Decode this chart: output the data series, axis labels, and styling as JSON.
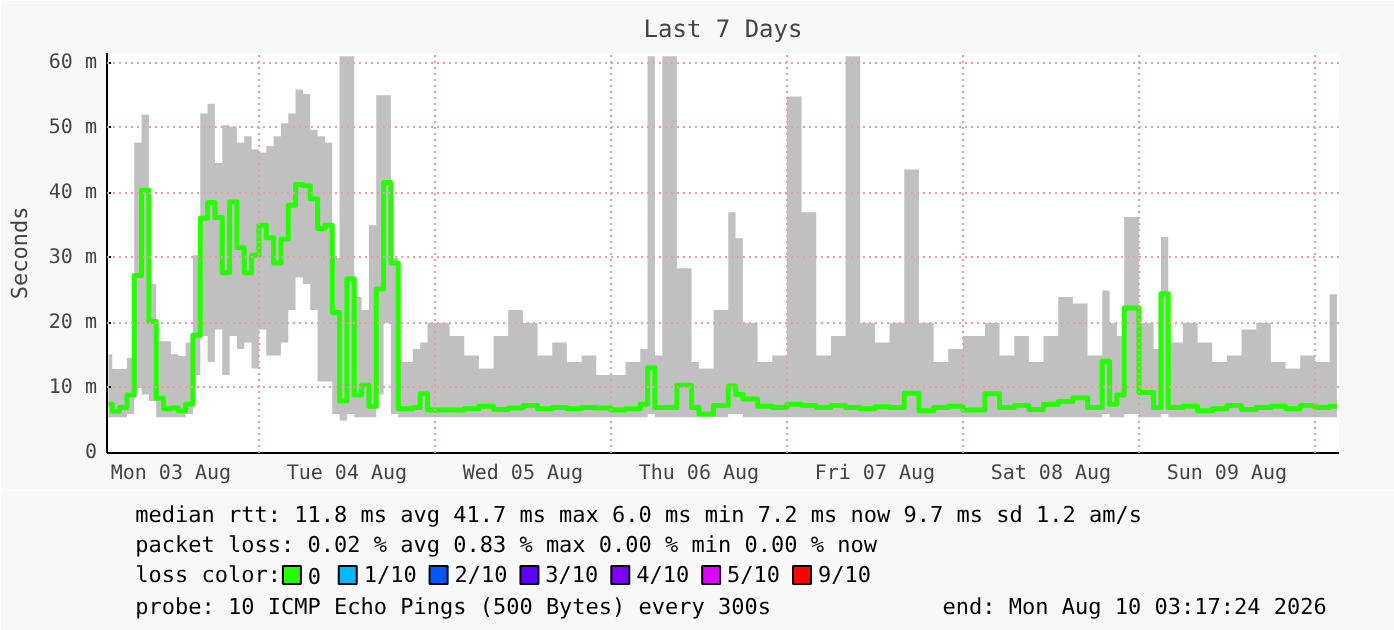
{
  "chart_data": {
    "type": "step",
    "title": "Last 7 Days",
    "ylabel": "Seconds",
    "xlim": [
      "2026-08-03T03:17",
      "2026-08-10T03:17"
    ],
    "xticks": [
      {
        "value": "2026-08-03T12:00",
        "label": "Mon 03 Aug"
      },
      {
        "value": "2026-08-04T00:00",
        "label": null
      },
      {
        "value": "2026-08-04T12:00",
        "label": "Tue 04 Aug"
      },
      {
        "value": "2026-08-05T00:00",
        "label": null
      },
      {
        "value": "2026-08-05T12:00",
        "label": "Wed 05 Aug"
      },
      {
        "value": "2026-08-06T00:00",
        "label": null
      },
      {
        "value": "2026-08-06T12:00",
        "label": "Thu 06 Aug"
      },
      {
        "value": "2026-08-07T00:00",
        "label": null
      },
      {
        "value": "2026-08-07T12:00",
        "label": "Fri 07 Aug"
      },
      {
        "value": "2026-08-08T00:00",
        "label": null
      },
      {
        "value": "2026-08-08T12:00",
        "label": "Sat 08 Aug"
      },
      {
        "value": "2026-08-09T00:00",
        "label": null
      },
      {
        "value": "2026-08-09T12:00",
        "label": "Sun 09 Aug"
      },
      {
        "value": "2026-08-10T00:00",
        "label": null
      }
    ],
    "ylim": [
      0,
      61.5
    ],
    "yticks": [
      0,
      {
        "value": 10,
        "label": "10 m"
      },
      {
        "value": 20,
        "label": "20 m"
      },
      {
        "value": 30,
        "label": "30 m"
      },
      {
        "value": 40,
        "label": "40 m"
      },
      {
        "value": 50,
        "label": "50 m"
      },
      {
        "value": 60,
        "label": "60 m"
      }
    ],
    "grid": true,
    "legend": "bottom",
    "legend_title": "loss color:",
    "series": [
      {
        "name": "0",
        "color": "#26ff00",
        "x": [
          "2026-08-03T03:30",
          "2026-08-03T04:00",
          "2026-08-03T05:00",
          "2026-08-03T06:00",
          "2026-08-03T07:00",
          "2026-08-03T08:00",
          "2026-08-03T09:00",
          "2026-08-03T10:00",
          "2026-08-03T11:00",
          "2026-08-03T12:00",
          "2026-08-03T13:00",
          "2026-08-03T14:00",
          "2026-08-03T15:00",
          "2026-08-03T16:00",
          "2026-08-03T17:00",
          "2026-08-03T18:00",
          "2026-08-03T19:00",
          "2026-08-03T20:00",
          "2026-08-03T21:00",
          "2026-08-03T22:00",
          "2026-08-03T23:00",
          "2026-08-04T00:00",
          "2026-08-04T01:00",
          "2026-08-04T02:00",
          "2026-08-04T03:00",
          "2026-08-04T04:00",
          "2026-08-04T05:00",
          "2026-08-04T06:00",
          "2026-08-04T07:00",
          "2026-08-04T08:00",
          "2026-08-04T09:00",
          "2026-08-04T10:00",
          "2026-08-04T11:00",
          "2026-08-04T12:00",
          "2026-08-04T13:00",
          "2026-08-04T14:00",
          "2026-08-04T15:00",
          "2026-08-04T16:00",
          "2026-08-04T17:00",
          "2026-08-04T18:00",
          "2026-08-04T19:00",
          "2026-08-04T21:00",
          "2026-08-04T22:00",
          "2026-08-04T23:00",
          "2026-08-05T02:00",
          "2026-08-05T04:00",
          "2026-08-05T06:00",
          "2026-08-05T08:00",
          "2026-08-05T10:00",
          "2026-08-05T12:00",
          "2026-08-05T14:00",
          "2026-08-05T16:00",
          "2026-08-05T18:00",
          "2026-08-05T20:00",
          "2026-08-05T22:00",
          "2026-08-06T00:00",
          "2026-08-06T02:00",
          "2026-08-06T04:00",
          "2026-08-06T05:00",
          "2026-08-06T06:00",
          "2026-08-06T07:00",
          "2026-08-06T09:00",
          "2026-08-06T11:00",
          "2026-08-06T12:00",
          "2026-08-06T14:00",
          "2026-08-06T16:00",
          "2026-08-06T17:00",
          "2026-08-06T18:00",
          "2026-08-06T20:00",
          "2026-08-06T22:00",
          "2026-08-07T00:00",
          "2026-08-07T02:00",
          "2026-08-07T04:00",
          "2026-08-07T06:00",
          "2026-08-07T08:00",
          "2026-08-07T10:00",
          "2026-08-07T12:00",
          "2026-08-07T14:00",
          "2026-08-07T16:00",
          "2026-08-07T18:00",
          "2026-08-07T20:00",
          "2026-08-07T22:00",
          "2026-08-08T00:00",
          "2026-08-08T03:00",
          "2026-08-08T05:00",
          "2026-08-08T07:00",
          "2026-08-08T09:00",
          "2026-08-08T11:00",
          "2026-08-08T13:00",
          "2026-08-08T15:00",
          "2026-08-08T17:00",
          "2026-08-08T19:00",
          "2026-08-08T20:00",
          "2026-08-08T21:00",
          "2026-08-08T22:00",
          "2026-08-09T00:00",
          "2026-08-09T02:00",
          "2026-08-09T03:00",
          "2026-08-09T04:00",
          "2026-08-09T06:00",
          "2026-08-09T08:00",
          "2026-08-09T10:00",
          "2026-08-09T12:00",
          "2026-08-09T14:00",
          "2026-08-09T16:00",
          "2026-08-09T18:00",
          "2026-08-09T20:00",
          "2026-08-09T22:00",
          "2026-08-10T00:00",
          "2026-08-10T02:00",
          "2026-08-10T03:00"
        ],
        "values": [
          7.5,
          6.4,
          7.0,
          8.9,
          27.3,
          40.4,
          20.2,
          8.4,
          6.8,
          6.9,
          6.5,
          7.5,
          18.1,
          36.1,
          38.5,
          36.2,
          27.7,
          38.6,
          31.6,
          27.7,
          30.4,
          35.0,
          33.1,
          29.2,
          32.9,
          38.1,
          41.3,
          41.1,
          39.1,
          34.5,
          35.0,
          21.6,
          8.0,
          26.8,
          8.9,
          10.4,
          7.2,
          25.2,
          41.6,
          29.2,
          6.8,
          7.0,
          9.1,
          6.6,
          6.6,
          6.8,
          7.2,
          6.7,
          6.9,
          7.3,
          6.8,
          7.0,
          6.8,
          7.0,
          6.9,
          6.6,
          6.8,
          7.5,
          13.1,
          7.0,
          7.0,
          10.4,
          7.0,
          6.0,
          7.3,
          10.3,
          9.0,
          8.3,
          7.2,
          7.0,
          7.5,
          7.3,
          7.0,
          7.3,
          7.0,
          6.8,
          7.1,
          7.0,
          9.2,
          6.5,
          7.0,
          7.2,
          6.6,
          9.1,
          7.0,
          7.3,
          6.7,
          7.5,
          7.9,
          8.5,
          7.0,
          14.1,
          7.5,
          8.9,
          22.3,
          9.3,
          7.0,
          24.5,
          7.0,
          7.2,
          6.5,
          6.8,
          7.3,
          6.7,
          7.0,
          7.2,
          6.8,
          7.3,
          7.0,
          7.2,
          7.2
        ],
        "lower": [
          5.5,
          5.5,
          5.5,
          6,
          10,
          9,
          8,
          5.5,
          5.5,
          5.5,
          5.5,
          6,
          12,
          18,
          14,
          19,
          12,
          18,
          16,
          17,
          13,
          19,
          15,
          15,
          17,
          22,
          27,
          26,
          22,
          11,
          11,
          6,
          5,
          6,
          5.5,
          5.5,
          5.5,
          9,
          20,
          6,
          5.5,
          5.5,
          5.5,
          5.5,
          5.5,
          5.5,
          5.5,
          5.5,
          5.5,
          5.5,
          5.5,
          5.5,
          5.5,
          5.5,
          5.5,
          5.5,
          5.5,
          5.5,
          6,
          5.5,
          5.5,
          5.5,
          5.5,
          5.5,
          5.5,
          6,
          6,
          5.5,
          5.5,
          5.5,
          5.5,
          5.5,
          5.5,
          5.5,
          5.5,
          5.5,
          5.5,
          5.5,
          5.5,
          5.5,
          5.5,
          5.5,
          5.5,
          5.5,
          5.5,
          5.5,
          5.5,
          5.5,
          5.5,
          5.5,
          5.5,
          6,
          5.5,
          5.5,
          6,
          5.5,
          5.5,
          6,
          5.5,
          5.5,
          5.5,
          5.5,
          5.5,
          5.5,
          5.5,
          5.5,
          5.5,
          5.5,
          5.5,
          5.5,
          5.5
        ],
        "upper": [
          15.2,
          12.9,
          12.9,
          14.6,
          47.7,
          52.0,
          26.0,
          17.2,
          17.2,
          15.2,
          14.9,
          17.0,
          30.4,
          52.2,
          53.7,
          44.6,
          50.4,
          50.2,
          47.7,
          48.7,
          46.7,
          46.2,
          47.2,
          48.7,
          50.7,
          52.2,
          55.9,
          55.2,
          49.7,
          48.7,
          47.7,
          30,
          61,
          61,
          24,
          22,
          35,
          55,
          55,
          30,
          14,
          16,
          17,
          20,
          18,
          15,
          13,
          18,
          22,
          20,
          15,
          17,
          14,
          15,
          12,
          12,
          14,
          16,
          61,
          15,
          61,
          28.4,
          14,
          13,
          22,
          37,
          33,
          20,
          14,
          15,
          54.8,
          37,
          15,
          18,
          61,
          20,
          17,
          20,
          43.6,
          20,
          14,
          16,
          18,
          20,
          15,
          18,
          14,
          18,
          24,
          23,
          15,
          25,
          20,
          18,
          36.3,
          20,
          16,
          33.2,
          17,
          20,
          17,
          14,
          15,
          19,
          20,
          14,
          13,
          15,
          14,
          24.4,
          22
        ]
      },
      {
        "name": "1/10",
        "color": "#00b8ff"
      },
      {
        "name": "2/10",
        "color": "#0059ff"
      },
      {
        "name": "3/10",
        "color": "#5e00ff"
      },
      {
        "name": "4/10",
        "color": "#7e00ff"
      },
      {
        "name": "5/10",
        "color": "#dd00ff"
      },
      {
        "name": "9/10",
        "color": "#ff0000"
      }
    ],
    "annotations": [
      "median rtt:  11.8 ms avg  41.7 ms max  6.0 ms min  7.2 ms now  9.7 ms sd  1.2  am/s",
      "packet loss: 0.02 % avg  0.83 % max  0.00 % min  0.00 % now",
      "probe:       10 ICMP Echo Pings (500 Bytes) every 300s",
      "end: Mon Aug 10 03:17:24 2026"
    ]
  }
}
